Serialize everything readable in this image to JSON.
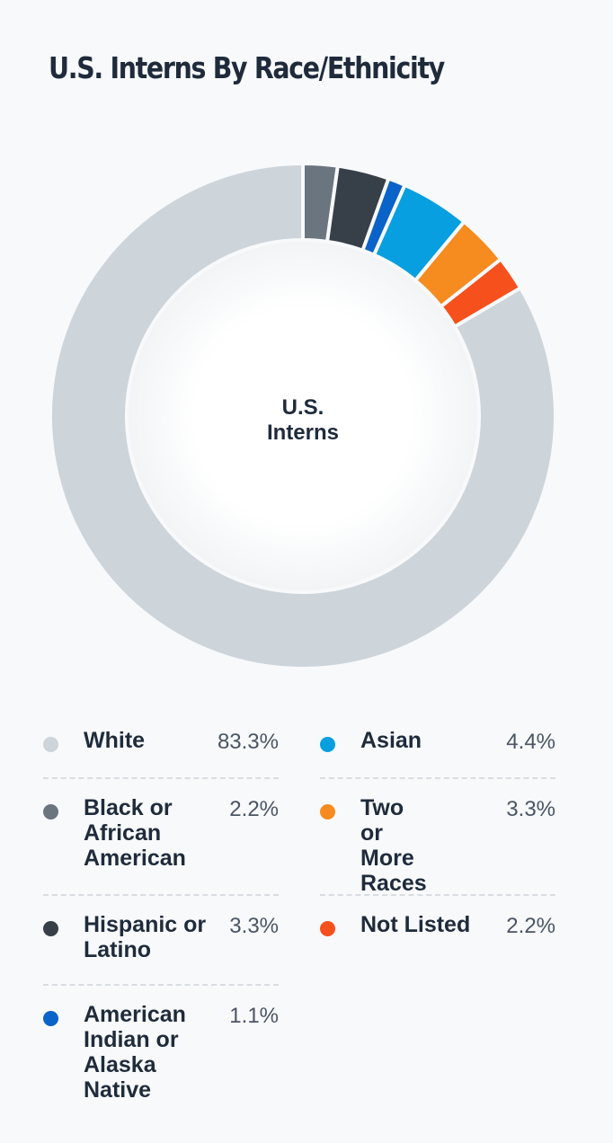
{
  "title": "U.S. Interns By Race/Ethnicity",
  "chart_data": {
    "type": "pie",
    "variant": "donut",
    "center_label": "U.S.\nInterns",
    "slices": [
      {
        "name": "Black or African American",
        "value": 2.2,
        "label": "2.2%",
        "color": "#6b7580"
      },
      {
        "name": "Hispanic or Latino",
        "value": 3.3,
        "label": "3.3%",
        "color": "#373f48"
      },
      {
        "name": "American Indian or Alaska Native",
        "value": 1.1,
        "label": "1.1%",
        "color": "#0a63c8"
      },
      {
        "name": "Asian",
        "value": 4.4,
        "label": "4.4%",
        "color": "#079fdf"
      },
      {
        "name": "Two or More Races",
        "value": 3.3,
        "label": "3.3%",
        "color": "#f68b1f"
      },
      {
        "name": "Not Listed",
        "value": 2.2,
        "label": "2.2%",
        "color": "#f6511d"
      },
      {
        "name": "White",
        "value": 83.3,
        "label": "83.3%",
        "color": "#cdd4da"
      }
    ],
    "legend": {
      "placement": "bottom",
      "left": [
        {
          "name": "White",
          "label": "83.3%",
          "color": "#cdd4da"
        },
        {
          "name": "Black or African American",
          "label": "2.2%",
          "color": "#6b7580"
        },
        {
          "name": "Hispanic or Latino",
          "label": "3.3%",
          "color": "#373f48"
        },
        {
          "name": "American Indian or Alaska Native",
          "label": "1.1%",
          "color": "#0a63c8"
        }
      ],
      "right": [
        {
          "name": "Asian",
          "label": "4.4%",
          "color": "#079fdf"
        },
        {
          "name": "Two or More Races",
          "label": "3.3%",
          "color": "#f68b1f"
        },
        {
          "name": "Not Listed",
          "label": "2.2%",
          "color": "#f6511d"
        }
      ]
    }
  }
}
